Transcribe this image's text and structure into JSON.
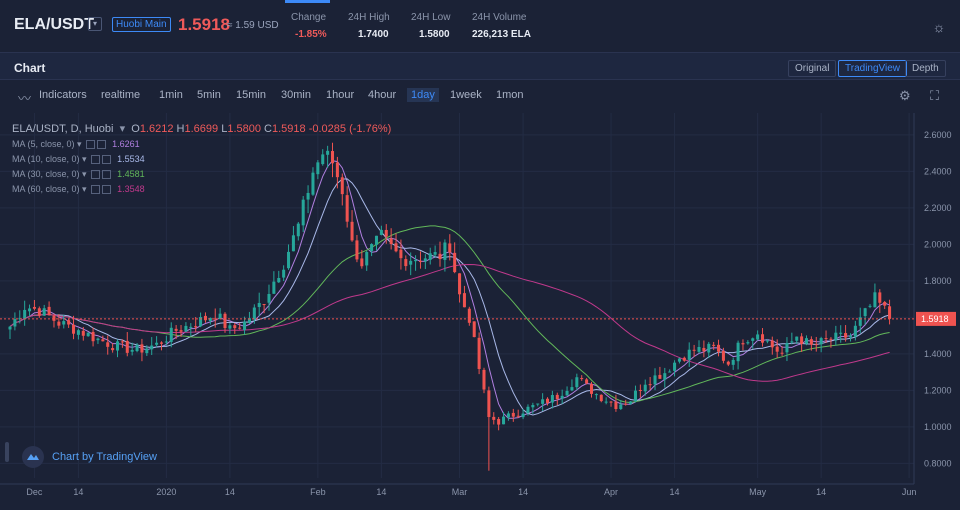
{
  "header": {
    "pair": "ELA/USDT",
    "exchange_badge": "Huobi Main",
    "last_price": "1.5918",
    "last_price_conv": "≈ 1.59 USD",
    "stats": [
      {
        "label": "Change",
        "value": "-1.85%",
        "negative": true
      },
      {
        "label": "24H High",
        "value": "1.7400",
        "negative": false
      },
      {
        "label": "24H Low",
        "value": "1.5800",
        "negative": false
      },
      {
        "label": "24H Volume",
        "value": "226,213 ELA",
        "negative": false
      }
    ]
  },
  "chart_panel": {
    "title": "Chart",
    "views": [
      {
        "label": "Original",
        "active": false
      },
      {
        "label": "TradingView",
        "active": true
      },
      {
        "label": "Depth",
        "active": false
      }
    ]
  },
  "toolbar": {
    "indicators": "Indicators",
    "intervals": [
      {
        "label": "realtime",
        "active": false
      },
      {
        "label": "1min",
        "active": false
      },
      {
        "label": "5min",
        "active": false
      },
      {
        "label": "15min",
        "active": false
      },
      {
        "label": "30min",
        "active": false
      },
      {
        "label": "1hour",
        "active": false
      },
      {
        "label": "4hour",
        "active": false
      },
      {
        "label": "1day",
        "active": true
      },
      {
        "label": "1week",
        "active": false
      },
      {
        "label": "1mon",
        "active": false
      }
    ]
  },
  "legend": {
    "symbol": "ELA/USDT, D, Huobi",
    "o_label": "O",
    "o": "1.6212",
    "h_label": "H",
    "h": "1.6699",
    "l_label": "L",
    "l": "1.5800",
    "c_label": "C",
    "c": "1.5918",
    "change": "-0.0285 (-1.76%)",
    "ma": [
      {
        "label": "MA (5, close, 0)",
        "value": "1.6261",
        "color": "#b07fe0"
      },
      {
        "label": "MA (10, close, 0)",
        "value": "1.5534",
        "color": "#a8b8e8"
      },
      {
        "label": "MA (30, close, 0)",
        "value": "1.4581",
        "color": "#62b85a"
      },
      {
        "label": "MA (60, close, 0)",
        "value": "1.3548",
        "color": "#c0398c"
      }
    ]
  },
  "branding": "Chart by TradingView",
  "colors": {
    "up": "#26a69a",
    "down": "#ef5350",
    "accent": "#3d8af7",
    "bg": "#1b2236"
  },
  "chart_data": {
    "type": "candlestick",
    "y_ticks": [
      "2.6000",
      "2.4000",
      "2.2000",
      "2.0000",
      "1.8000",
      "1.6000",
      "1.4000",
      "1.2000",
      "1.0000",
      "0.8000"
    ],
    "ylim": [
      0.72,
      2.72
    ],
    "x_ticks": [
      {
        "label": "Dec",
        "day": 5
      },
      {
        "label": "14",
        "day": 14
      },
      {
        "label": "2020",
        "day": 32
      },
      {
        "label": "14",
        "day": 45
      },
      {
        "label": "Feb",
        "day": 63
      },
      {
        "label": "14",
        "day": 76
      },
      {
        "label": "Mar",
        "day": 92
      },
      {
        "label": "14",
        "day": 105
      },
      {
        "label": "Apr",
        "day": 123
      },
      {
        "label": "14",
        "day": 136
      },
      {
        "label": "May",
        "day": 153
      },
      {
        "label": "14",
        "day": 166
      },
      {
        "label": "Jun",
        "day": 184
      }
    ],
    "last_price_label": "1.5918",
    "last_price": 1.5918,
    "keypoints": [
      [
        0,
        1.55
      ],
      [
        3,
        1.66
      ],
      [
        6,
        1.64
      ],
      [
        10,
        1.57
      ],
      [
        14,
        1.53
      ],
      [
        18,
        1.48
      ],
      [
        22,
        1.44
      ],
      [
        26,
        1.42
      ],
      [
        30,
        1.45
      ],
      [
        34,
        1.53
      ],
      [
        38,
        1.57
      ],
      [
        42,
        1.62
      ],
      [
        45,
        1.53
      ],
      [
        48,
        1.57
      ],
      [
        52,
        1.7
      ],
      [
        56,
        1.9
      ],
      [
        59,
        2.1
      ],
      [
        62,
        2.4
      ],
      [
        64,
        2.5
      ],
      [
        66,
        2.45
      ],
      [
        68,
        2.3
      ],
      [
        70,
        2.0
      ],
      [
        72,
        1.9
      ],
      [
        76,
        2.04
      ],
      [
        80,
        1.92
      ],
      [
        84,
        1.93
      ],
      [
        88,
        1.94
      ],
      [
        90,
        2.0
      ],
      [
        92,
        1.72
      ],
      [
        94,
        1.6
      ],
      [
        96,
        1.32
      ],
      [
        98,
        1.05
      ],
      [
        100,
        1.03
      ],
      [
        104,
        1.08
      ],
      [
        108,
        1.12
      ],
      [
        112,
        1.17
      ],
      [
        116,
        1.27
      ],
      [
        118,
        1.22
      ],
      [
        120,
        1.18
      ],
      [
        124,
        1.12
      ],
      [
        127,
        1.15
      ],
      [
        130,
        1.25
      ],
      [
        134,
        1.3
      ],
      [
        137,
        1.38
      ],
      [
        140,
        1.42
      ],
      [
        144,
        1.43
      ],
      [
        147,
        1.35
      ],
      [
        150,
        1.48
      ],
      [
        153,
        1.52
      ],
      [
        156,
        1.44
      ],
      [
        158,
        1.4
      ],
      [
        161,
        1.5
      ],
      [
        164,
        1.44
      ],
      [
        168,
        1.48
      ],
      [
        172,
        1.5
      ],
      [
        175,
        1.62
      ],
      [
        177,
        1.7
      ],
      [
        179,
        1.64
      ],
      [
        180,
        1.59
      ]
    ]
  }
}
